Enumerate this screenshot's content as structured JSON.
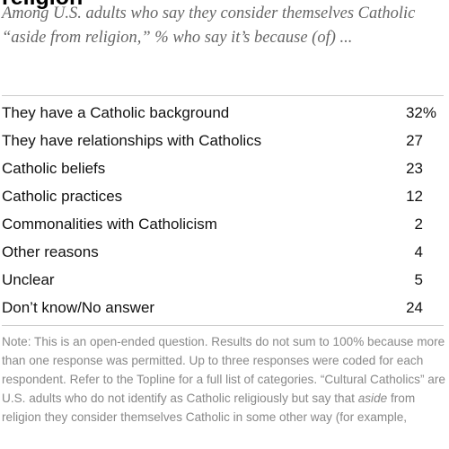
{
  "header": {
    "title": "religion",
    "subtitle": "Among U.S. adults who say they consider themselves Catholic “aside from religion,” % who say it’s because (of) ..."
  },
  "table": {
    "rows": [
      [
        "They have a Catholic background",
        "32%"
      ],
      [
        "They have relationships with Catholics",
        "27"
      ],
      [
        "Catholic beliefs",
        "23"
      ],
      [
        "Catholic practices",
        "12"
      ],
      [
        "Commonalities with Catholicism",
        "2"
      ],
      [
        "Other reasons",
        "4"
      ],
      [
        "Unclear",
        "5"
      ],
      [
        "Don’t know/No answer",
        "24"
      ]
    ]
  },
  "note": [
    "Note: This is an open-ended question. Results do not sum to 100% because more than one response was permitted. Up to three responses were coded for each respondent. Refer to the Topline for a full list of categories. “Cultural Catholics” are U.S. adults who do not identify as Catholic religiously but say that ",
    "aside",
    " from religion they consider themselves Catholic in some other way (for example,"
  ]
}
